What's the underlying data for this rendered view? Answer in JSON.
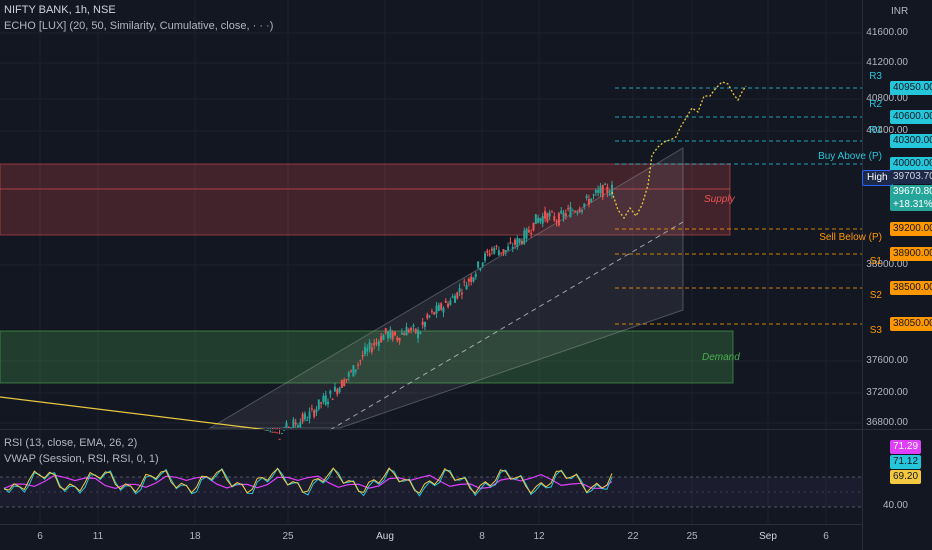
{
  "header": {
    "symbol_line": "NIFTY BANK, 1h, NSE",
    "indicator_line": "ECHO [LUX] (20, 50, Similarity, Cumulative, close, · · ·)",
    "rsi_line": "RSI (13, close, EMA, 26, 2)",
    "vwap_line": "VWAP (Session, RSI, RSI, 0, 1)"
  },
  "currency": "INR",
  "y_axis_ticks": [
    "41600.00",
    "41200.00",
    "40800.00",
    "40400.00",
    "38000.00",
    "37600.00",
    "37200.00",
    "36800.00"
  ],
  "x_axis_ticks": [
    "6",
    "11",
    "18",
    "25",
    "Aug",
    "8",
    "12",
    "22",
    "25",
    "Sep",
    "6"
  ],
  "levels": [
    {
      "name": "R3",
      "price": "40950.00",
      "color": "#26c6da",
      "label_color": "#26c6da"
    },
    {
      "name": "R2",
      "price": "40600.00",
      "color": "#26c6da",
      "label_color": "#26c6da"
    },
    {
      "name": "R1",
      "price": "40300.00",
      "color": "#26c6da",
      "label_color": "#26c6da"
    },
    {
      "name": "Buy Above (P)",
      "price": "40000.00",
      "color": "#26c6da",
      "label_color": "#26c6da"
    },
    {
      "name": "Sell Below (P)",
      "price": "39200.00",
      "color": "#ff9800",
      "label_color": "#ff9800"
    },
    {
      "name": "S1",
      "price": "38900.00",
      "color": "#ff9800",
      "label_color": "#ff9800"
    },
    {
      "name": "S2",
      "price": "38500.00",
      "color": "#ff9800",
      "label_color": "#ff9800"
    },
    {
      "name": "S3",
      "price": "38050.00",
      "color": "#ff9800",
      "label_color": "#ff9800"
    }
  ],
  "high_label": "High",
  "high_value": "39703.70",
  "last_price": "39670.80",
  "change_pct": "+18.31%",
  "zones": {
    "supply": "Supply",
    "demand": "Demand"
  },
  "rsi_values": {
    "v1": "71.29",
    "v2": "71.12",
    "v3": "69.20",
    "axis": "40.00"
  },
  "colors": {
    "background": "#131722",
    "supply": "#ef5350",
    "demand": "#4caf50",
    "up": "#26a69a",
    "down": "#ef5350",
    "echo": "#e6c840",
    "rsi": "#f5c842",
    "rsi_ma": "#e040fb",
    "rsi_alt": "#26c6da"
  },
  "chart_data": {
    "type": "candlestick",
    "title": "NIFTY BANK, 1h, NSE",
    "ylim": [
      36800,
      41600
    ],
    "x_ticks": [
      "6",
      "11",
      "18",
      "25",
      "Aug",
      "8",
      "12",
      "22",
      "25",
      "Sep",
      "6"
    ],
    "series": [
      {
        "values": [
          36700,
          36650,
          36750,
          36820,
          36900,
          37050,
          37150,
          37300,
          37450,
          37650,
          37780,
          37900,
          37850,
          37950,
          37900,
          38100,
          38200,
          38300,
          38450,
          38600,
          38800,
          38950,
          38900,
          39000,
          39100,
          39300,
          39350,
          39300,
          39400,
          39450,
          39550,
          39650,
          39670
        ]
      }
    ]
  }
}
